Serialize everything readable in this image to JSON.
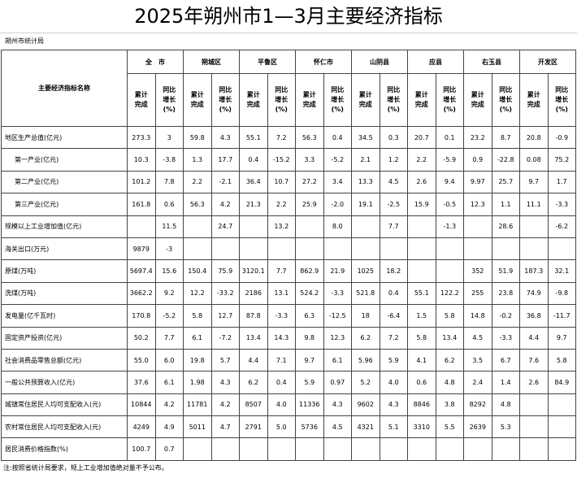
{
  "title": "2025年朔州市1—3月主要经济指标",
  "agency": "朔州市统计局",
  "table": {
    "header": "主要经济指标名称",
    "regions": [
      "全　市",
      "朔城区",
      "平鲁区",
      "怀仁市",
      "山阴县",
      "应县",
      "右玉县",
      "开发区"
    ],
    "subheaders": [
      "累计完成",
      "同比增长(%)"
    ],
    "rows": [
      {
        "label": "地区生产总值(亿元)",
        "values": [
          "273.3",
          "3",
          "59.8",
          "4.3",
          "55.1",
          "7.2",
          "56.3",
          "0.4",
          "34.5",
          "0.3",
          "20.7",
          "0.1",
          "23.2",
          "8.7",
          "20.8",
          "-0.9"
        ]
      },
      {
        "label": "第一产业(亿元)",
        "values": [
          "10.3",
          "-3.8",
          "1.3",
          "17.7",
          "0.4",
          "-15.2",
          "3.3",
          "-5.2",
          "2.1",
          "1.2",
          "2.2",
          "-5.9",
          "0.9",
          "-22.8",
          "0.08",
          "75.2"
        ]
      },
      {
        "label": "第二产业(亿元)",
        "values": [
          "101.2",
          "7.8",
          "2.2",
          "-2.1",
          "36.4",
          "10.7",
          "27.2",
          "3.4",
          "13.3",
          "4.5",
          "2.6",
          "9.4",
          "9.97",
          "25.7",
          "9.7",
          "1.7"
        ]
      },
      {
        "label": "第三产业(亿元)",
        "values": [
          "161.8",
          "0.6",
          "56.3",
          "4.2",
          "21.3",
          "2.2",
          "25.9",
          "-2.0",
          "19.1",
          "-2.5",
          "15.9",
          "-0.5",
          "12.3",
          "1.1",
          "11.1",
          "-3.3"
        ]
      },
      {
        "label": "规模以上工业增加值(亿元)",
        "values": [
          null,
          "11.5",
          null,
          "24.7",
          null,
          "13.2",
          null,
          "8.0",
          null,
          "7.7",
          null,
          "-1.3",
          null,
          "28.6",
          null,
          "-6.2"
        ]
      },
      {
        "label": "海关出口(万元)",
        "values": [
          "9879",
          "-3",
          null,
          null,
          null,
          null,
          null,
          null,
          null,
          null,
          null,
          null,
          null,
          null,
          null,
          null
        ]
      },
      {
        "label": "原煤(万吨)",
        "values": [
          "5697.4",
          "15.6",
          "150.4",
          "75.9",
          "3120.1",
          "7.7",
          "862.9",
          "21.9",
          "1025",
          "18.2",
          null,
          null,
          "352",
          "51.9",
          "187.3",
          "32.1"
        ]
      },
      {
        "label": "洗煤(万吨)",
        "values": [
          "3662.2",
          "9.2",
          "12.2",
          "-33.2",
          "2186",
          "13.1",
          "524.2",
          "-3.3",
          "521.8",
          "0.4",
          "55.1",
          "122.2",
          "255",
          "23.8",
          "74.9",
          "-9.8"
        ]
      },
      {
        "label": "发电量(亿千瓦时)",
        "values": [
          "170.8",
          "-5.2",
          "5.8",
          "12.7",
          "87.8",
          "-3.3",
          "6.3",
          "-12.5",
          "18",
          "-6.4",
          "1.5",
          "5.8",
          "14.8",
          "-0.2",
          "36.8",
          "-11.7"
        ]
      },
      {
        "label": "固定资产投资(亿元)",
        "values": [
          "50.2",
          "7.7",
          "6.1",
          "-7.2",
          "13.4",
          "14.3",
          "9.8",
          "12.3",
          "6.2",
          "7.2",
          "5.8",
          "13.4",
          "4.5",
          "-3.3",
          "4.4",
          "9.7"
        ]
      },
      {
        "label": "社会消费品零售总额(亿元)",
        "values": [
          "55.0",
          "6.0",
          "19.8",
          "5.7",
          "4.4",
          "7.1",
          "9.7",
          "6.1",
          "5.96",
          "5.9",
          "4.1",
          "6.2",
          "3.5",
          "6.7",
          "7.6",
          "5.8"
        ]
      },
      {
        "label": "一般公共预算收入(亿元)",
        "values": [
          "37.6",
          "6.1",
          "1.98",
          "4.3",
          "6.2",
          "0.4",
          "5.9",
          "0.97",
          "5.2",
          "4.0",
          "0.6",
          "4.8",
          "2.4",
          "1.4",
          "2.6",
          "84.9"
        ]
      },
      {
        "label": "城镇常住居民人均可支配收入(元)",
        "values": [
          "10844",
          "4.2",
          "11781",
          "4.2",
          "8507",
          "4.0",
          "11336",
          "4.3",
          "9602",
          "4.3",
          "8846",
          "3.8",
          "8292",
          "4.8",
          null,
          null
        ]
      },
      {
        "label": "农村常住居民人均可支配收入(元)",
        "values": [
          "4249",
          "4.9",
          "5011",
          "4.7",
          "2791",
          "5.0",
          "5736",
          "4.5",
          "4321",
          "5.1",
          "3310",
          "5.5",
          "2639",
          "5.3",
          null,
          null
        ]
      },
      {
        "label": "居民消费价格指数(%)",
        "values": [
          "100.7",
          "0.7",
          null,
          null,
          null,
          null,
          null,
          null,
          null,
          null,
          null,
          null,
          null,
          null,
          null,
          null
        ]
      }
    ]
  },
  "note": "注:按照省统计局要求，规上工业增加值绝对量不予公布。"
}
